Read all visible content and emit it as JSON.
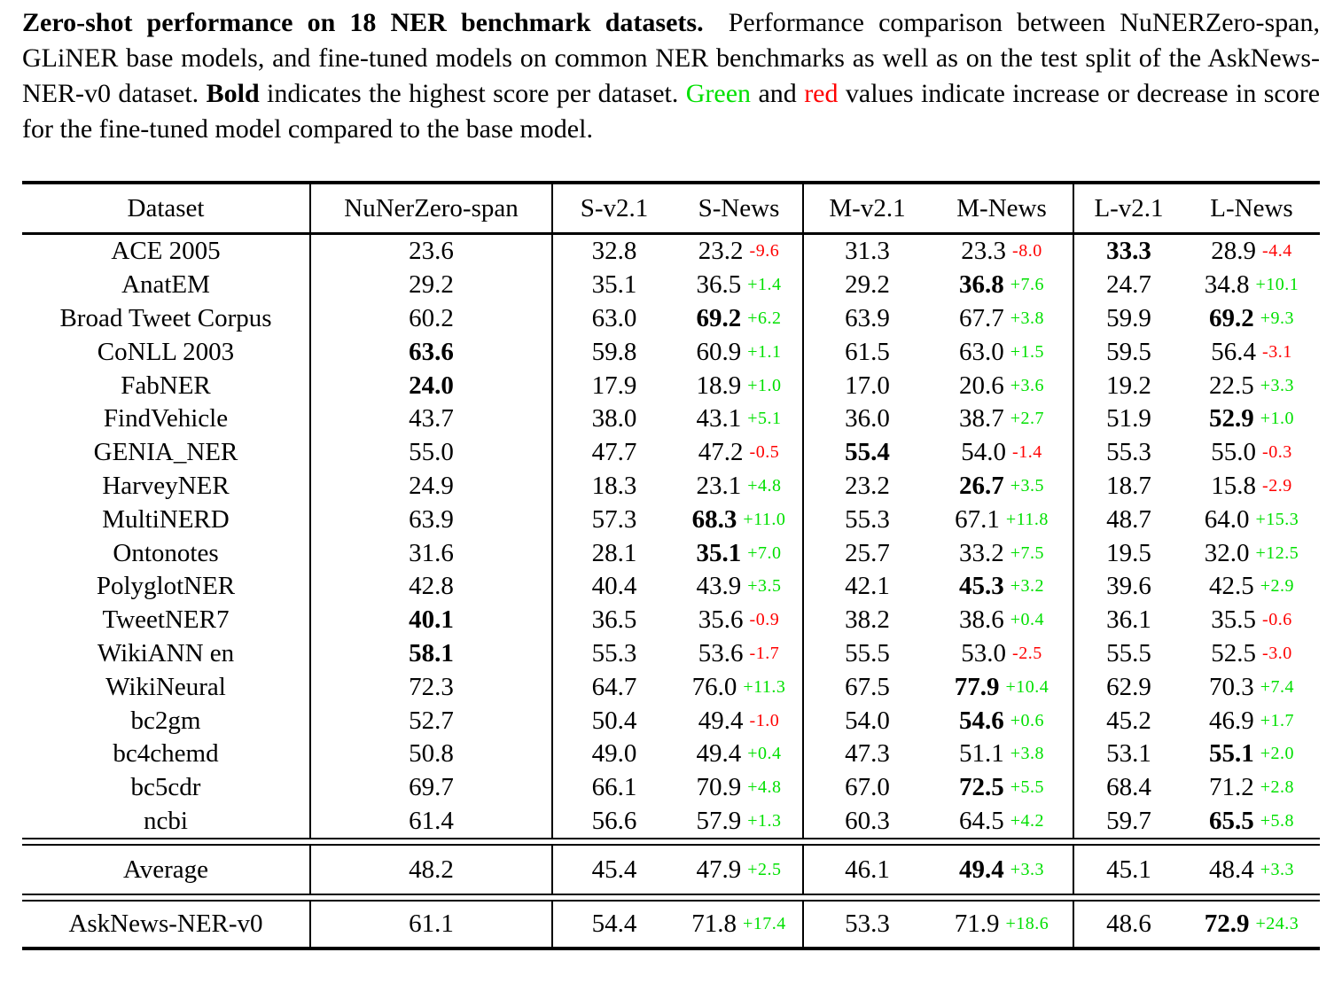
{
  "caption": {
    "lead_bold": "Zero-shot performance on 18 NER benchmark datasets.",
    "body_1": "Performance comparison between NuNERZero-span, GLiNER base models, and fine-tuned models on common NER benchmarks as well as on the test split of the AskNews-NER-v0 dataset. ",
    "bold_word": "Bold",
    "body_2": " indicates the highest score per dataset. ",
    "green_word": "Green",
    "body_3": " and ",
    "red_word": "red",
    "body_4": " values indicate increase or decrease in score for the fine-tuned model compared to the base model."
  },
  "colors": {
    "increase": "#00e000",
    "decrease": "#ff0000"
  },
  "table": {
    "columns": [
      "Dataset",
      "NuNerZero-span",
      "S-v2.1",
      "S-News",
      "M-v2.1",
      "M-News",
      "L-v2.1",
      "L-News"
    ],
    "rows": [
      {
        "dataset": "ACE 2005",
        "cells": [
          {
            "v": "23.6",
            "bold": false
          },
          {
            "v": "32.8",
            "bold": false
          },
          {
            "v": "23.2",
            "bold": false,
            "d": "-9.6"
          },
          {
            "v": "31.3",
            "bold": false
          },
          {
            "v": "23.3",
            "bold": false,
            "d": "-8.0"
          },
          {
            "v": "33.3",
            "bold": true
          },
          {
            "v": "28.9",
            "bold": false,
            "d": "-4.4"
          }
        ]
      },
      {
        "dataset": "AnatEM",
        "cells": [
          {
            "v": "29.2",
            "bold": false
          },
          {
            "v": "35.1",
            "bold": false
          },
          {
            "v": "36.5",
            "bold": false,
            "d": "+1.4"
          },
          {
            "v": "29.2",
            "bold": false
          },
          {
            "v": "36.8",
            "bold": true,
            "d": "+7.6"
          },
          {
            "v": "24.7",
            "bold": false
          },
          {
            "v": "34.8",
            "bold": false,
            "d": "+10.1"
          }
        ]
      },
      {
        "dataset": "Broad Tweet Corpus",
        "cells": [
          {
            "v": "60.2",
            "bold": false
          },
          {
            "v": "63.0",
            "bold": false
          },
          {
            "v": "69.2",
            "bold": true,
            "d": "+6.2"
          },
          {
            "v": "63.9",
            "bold": false
          },
          {
            "v": "67.7",
            "bold": false,
            "d": "+3.8"
          },
          {
            "v": "59.9",
            "bold": false
          },
          {
            "v": "69.2",
            "bold": true,
            "d": "+9.3"
          }
        ]
      },
      {
        "dataset": "CoNLL 2003",
        "cells": [
          {
            "v": "63.6",
            "bold": true
          },
          {
            "v": "59.8",
            "bold": false
          },
          {
            "v": "60.9",
            "bold": false,
            "d": "+1.1"
          },
          {
            "v": "61.5",
            "bold": false
          },
          {
            "v": "63.0",
            "bold": false,
            "d": "+1.5"
          },
          {
            "v": "59.5",
            "bold": false
          },
          {
            "v": "56.4",
            "bold": false,
            "d": "-3.1"
          }
        ]
      },
      {
        "dataset": "FabNER",
        "cells": [
          {
            "v": "24.0",
            "bold": true
          },
          {
            "v": "17.9",
            "bold": false
          },
          {
            "v": "18.9",
            "bold": false,
            "d": "+1.0"
          },
          {
            "v": "17.0",
            "bold": false
          },
          {
            "v": "20.6",
            "bold": false,
            "d": "+3.6"
          },
          {
            "v": "19.2",
            "bold": false
          },
          {
            "v": "22.5",
            "bold": false,
            "d": "+3.3"
          }
        ]
      },
      {
        "dataset": "FindVehicle",
        "cells": [
          {
            "v": "43.7",
            "bold": false
          },
          {
            "v": "38.0",
            "bold": false
          },
          {
            "v": "43.1",
            "bold": false,
            "d": "+5.1"
          },
          {
            "v": "36.0",
            "bold": false
          },
          {
            "v": "38.7",
            "bold": false,
            "d": "+2.7"
          },
          {
            "v": "51.9",
            "bold": false
          },
          {
            "v": "52.9",
            "bold": true,
            "d": "+1.0"
          }
        ]
      },
      {
        "dataset": "GENIA_NER",
        "cells": [
          {
            "v": "55.0",
            "bold": false
          },
          {
            "v": "47.7",
            "bold": false
          },
          {
            "v": "47.2",
            "bold": false,
            "d": "-0.5"
          },
          {
            "v": "55.4",
            "bold": true
          },
          {
            "v": "54.0",
            "bold": false,
            "d": "-1.4"
          },
          {
            "v": "55.3",
            "bold": false
          },
          {
            "v": "55.0",
            "bold": false,
            "d": "-0.3"
          }
        ]
      },
      {
        "dataset": "HarveyNER",
        "cells": [
          {
            "v": "24.9",
            "bold": false
          },
          {
            "v": "18.3",
            "bold": false
          },
          {
            "v": "23.1",
            "bold": false,
            "d": "+4.8"
          },
          {
            "v": "23.2",
            "bold": false
          },
          {
            "v": "26.7",
            "bold": true,
            "d": "+3.5"
          },
          {
            "v": "18.7",
            "bold": false
          },
          {
            "v": "15.8",
            "bold": false,
            "d": "-2.9"
          }
        ]
      },
      {
        "dataset": "MultiNERD",
        "cells": [
          {
            "v": "63.9",
            "bold": false
          },
          {
            "v": "57.3",
            "bold": false
          },
          {
            "v": "68.3",
            "bold": true,
            "d": "+11.0"
          },
          {
            "v": "55.3",
            "bold": false
          },
          {
            "v": "67.1",
            "bold": false,
            "d": "+11.8"
          },
          {
            "v": "48.7",
            "bold": false
          },
          {
            "v": "64.0",
            "bold": false,
            "d": "+15.3"
          }
        ]
      },
      {
        "dataset": "Ontonotes",
        "cells": [
          {
            "v": "31.6",
            "bold": false
          },
          {
            "v": "28.1",
            "bold": false
          },
          {
            "v": "35.1",
            "bold": true,
            "d": "+7.0"
          },
          {
            "v": "25.7",
            "bold": false
          },
          {
            "v": "33.2",
            "bold": false,
            "d": "+7.5"
          },
          {
            "v": "19.5",
            "bold": false
          },
          {
            "v": "32.0",
            "bold": false,
            "d": "+12.5"
          }
        ]
      },
      {
        "dataset": "PolyglotNER",
        "cells": [
          {
            "v": "42.8",
            "bold": false
          },
          {
            "v": "40.4",
            "bold": false
          },
          {
            "v": "43.9",
            "bold": false,
            "d": "+3.5"
          },
          {
            "v": "42.1",
            "bold": false
          },
          {
            "v": "45.3",
            "bold": true,
            "d": "+3.2"
          },
          {
            "v": "39.6",
            "bold": false
          },
          {
            "v": "42.5",
            "bold": false,
            "d": "+2.9"
          }
        ]
      },
      {
        "dataset": "TweetNER7",
        "cells": [
          {
            "v": "40.1",
            "bold": true
          },
          {
            "v": "36.5",
            "bold": false
          },
          {
            "v": "35.6",
            "bold": false,
            "d": "-0.9"
          },
          {
            "v": "38.2",
            "bold": false
          },
          {
            "v": "38.6",
            "bold": false,
            "d": "+0.4"
          },
          {
            "v": "36.1",
            "bold": false
          },
          {
            "v": "35.5",
            "bold": false,
            "d": "-0.6"
          }
        ]
      },
      {
        "dataset": "WikiANN en",
        "cells": [
          {
            "v": "58.1",
            "bold": true
          },
          {
            "v": "55.3",
            "bold": false
          },
          {
            "v": "53.6",
            "bold": false,
            "d": "-1.7"
          },
          {
            "v": "55.5",
            "bold": false
          },
          {
            "v": "53.0",
            "bold": false,
            "d": "-2.5"
          },
          {
            "v": "55.5",
            "bold": false
          },
          {
            "v": "52.5",
            "bold": false,
            "d": "-3.0"
          }
        ]
      },
      {
        "dataset": "WikiNeural",
        "cells": [
          {
            "v": "72.3",
            "bold": false
          },
          {
            "v": "64.7",
            "bold": false
          },
          {
            "v": "76.0",
            "bold": false,
            "d": "+11.3"
          },
          {
            "v": "67.5",
            "bold": false
          },
          {
            "v": "77.9",
            "bold": true,
            "d": "+10.4"
          },
          {
            "v": "62.9",
            "bold": false
          },
          {
            "v": "70.3",
            "bold": false,
            "d": "+7.4"
          }
        ]
      },
      {
        "dataset": "bc2gm",
        "cells": [
          {
            "v": "52.7",
            "bold": false
          },
          {
            "v": "50.4",
            "bold": false
          },
          {
            "v": "49.4",
            "bold": false,
            "d": "-1.0"
          },
          {
            "v": "54.0",
            "bold": false
          },
          {
            "v": "54.6",
            "bold": true,
            "d": "+0.6"
          },
          {
            "v": "45.2",
            "bold": false
          },
          {
            "v": "46.9",
            "bold": false,
            "d": "+1.7"
          }
        ]
      },
      {
        "dataset": "bc4chemd",
        "cells": [
          {
            "v": "50.8",
            "bold": false
          },
          {
            "v": "49.0",
            "bold": false
          },
          {
            "v": "49.4",
            "bold": false,
            "d": "+0.4"
          },
          {
            "v": "47.3",
            "bold": false
          },
          {
            "v": "51.1",
            "bold": false,
            "d": "+3.8"
          },
          {
            "v": "53.1",
            "bold": false
          },
          {
            "v": "55.1",
            "bold": true,
            "d": "+2.0"
          }
        ]
      },
      {
        "dataset": "bc5cdr",
        "cells": [
          {
            "v": "69.7",
            "bold": false
          },
          {
            "v": "66.1",
            "bold": false
          },
          {
            "v": "70.9",
            "bold": false,
            "d": "+4.8"
          },
          {
            "v": "67.0",
            "bold": false
          },
          {
            "v": "72.5",
            "bold": true,
            "d": "+5.5"
          },
          {
            "v": "68.4",
            "bold": false
          },
          {
            "v": "71.2",
            "bold": false,
            "d": "+2.8"
          }
        ]
      },
      {
        "dataset": "ncbi",
        "cells": [
          {
            "v": "61.4",
            "bold": false
          },
          {
            "v": "56.6",
            "bold": false
          },
          {
            "v": "57.9",
            "bold": false,
            "d": "+1.3"
          },
          {
            "v": "60.3",
            "bold": false
          },
          {
            "v": "64.5",
            "bold": false,
            "d": "+4.2"
          },
          {
            "v": "59.7",
            "bold": false
          },
          {
            "v": "65.5",
            "bold": true,
            "d": "+5.8"
          }
        ]
      }
    ],
    "average_row": {
      "dataset": "Average",
      "cells": [
        {
          "v": "48.2",
          "bold": false
        },
        {
          "v": "45.4",
          "bold": false
        },
        {
          "v": "47.9",
          "bold": false,
          "d": "+2.5"
        },
        {
          "v": "46.1",
          "bold": false
        },
        {
          "v": "49.4",
          "bold": true,
          "d": "+3.3"
        },
        {
          "v": "45.1",
          "bold": false
        },
        {
          "v": "48.4",
          "bold": false,
          "d": "+3.3"
        }
      ]
    },
    "asknews_row": {
      "dataset": "AskNews-NER-v0",
      "cells": [
        {
          "v": "61.1",
          "bold": false
        },
        {
          "v": "54.4",
          "bold": false
        },
        {
          "v": "71.8",
          "bold": false,
          "d": "+17.4"
        },
        {
          "v": "53.3",
          "bold": false
        },
        {
          "v": "71.9",
          "bold": false,
          "d": "+18.6"
        },
        {
          "v": "48.6",
          "bold": false
        },
        {
          "v": "72.9",
          "bold": true,
          "d": "+24.3"
        }
      ]
    }
  }
}
